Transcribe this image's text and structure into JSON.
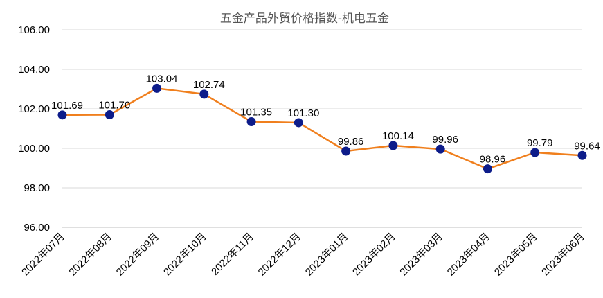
{
  "chart_data": {
    "type": "line",
    "title": "五金产品外贸价格指数-机电五金",
    "categories": [
      "2022年07月",
      "2022年08月",
      "2022年09月",
      "2022年10月",
      "2022年11月",
      "2022年12月",
      "2023年01月",
      "2023年02月",
      "2023年03月",
      "2023年04月",
      "2023年05月",
      "2023年06月"
    ],
    "series": [
      {
        "values": [
          101.69,
          101.7,
          103.04,
          102.74,
          101.35,
          101.3,
          99.86,
          100.14,
          99.96,
          98.96,
          99.79,
          99.64
        ],
        "labels": [
          "101.69",
          "101.70",
          "103.04",
          "102.74",
          "101.35",
          "101.30",
          "99.86",
          "100.14",
          "99.96",
          "98.96",
          "99.79",
          "99.64"
        ],
        "line_color": "#f07f1d",
        "marker_color": "#0d1c8a"
      }
    ],
    "ylim": [
      96,
      106
    ],
    "yticks": [
      96,
      98,
      100,
      102,
      104,
      106
    ],
    "ytick_labels": [
      "96.00",
      "98.00",
      "100.00",
      "102.00",
      "104.00",
      "106.00"
    ],
    "grid": true,
    "legend": "none"
  }
}
